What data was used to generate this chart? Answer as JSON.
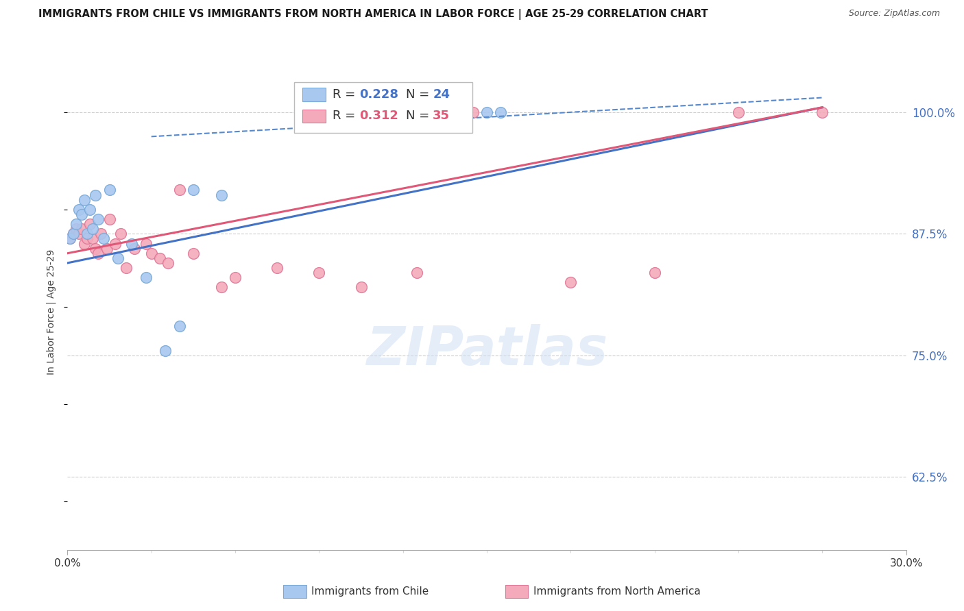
{
  "title": "IMMIGRANTS FROM CHILE VS IMMIGRANTS FROM NORTH AMERICA IN LABOR FORCE | AGE 25-29 CORRELATION CHART",
  "source": "Source: ZipAtlas.com",
  "ylabel": "In Labor Force | Age 25-29",
  "ylabel_right_ticks": [
    62.5,
    75.0,
    87.5,
    100.0
  ],
  "xlim": [
    0.0,
    30.0
  ],
  "ylim": [
    55.0,
    104.0
  ],
  "chile_color": "#A8C8F0",
  "chile_edge": "#7AAAD8",
  "na_color": "#F4AABB",
  "na_edge": "#E07898",
  "line_chile_color": "#4472C4",
  "line_na_color": "#E05878",
  "line_dash_color": "#5588CC",
  "legend_R_chile": "0.228",
  "legend_N_chile": "24",
  "legend_R_na": "0.312",
  "legend_N_na": "35",
  "watermark": "ZIPatlas",
  "background_color": "#FFFFFF",
  "grid_color": "#CCCCCC",
  "chile_x": [
    0.1,
    0.2,
    0.3,
    0.4,
    0.5,
    0.6,
    0.7,
    0.8,
    0.9,
    1.0,
    1.1,
    1.3,
    1.5,
    1.8,
    2.3,
    2.8,
    3.5,
    4.0,
    4.5,
    5.5,
    13.5,
    14.0,
    15.0,
    15.5
  ],
  "chile_y": [
    87.0,
    87.5,
    88.5,
    90.0,
    89.5,
    91.0,
    87.5,
    90.0,
    88.0,
    91.5,
    89.0,
    87.0,
    92.0,
    85.0,
    86.5,
    83.0,
    75.5,
    78.0,
    92.0,
    91.5,
    100.0,
    100.0,
    100.0,
    100.0
  ],
  "na_x": [
    0.1,
    0.2,
    0.3,
    0.4,
    0.5,
    0.6,
    0.7,
    0.8,
    0.9,
    1.0,
    1.1,
    1.2,
    1.4,
    1.5,
    1.7,
    1.9,
    2.1,
    2.4,
    2.8,
    3.0,
    3.3,
    3.6,
    4.0,
    4.5,
    5.5,
    6.0,
    7.5,
    9.0,
    10.5,
    12.5,
    14.5,
    18.0,
    21.0,
    24.0,
    27.0
  ],
  "na_y": [
    87.0,
    87.5,
    88.0,
    87.5,
    88.0,
    86.5,
    87.0,
    88.5,
    87.0,
    86.0,
    85.5,
    87.5,
    86.0,
    89.0,
    86.5,
    87.5,
    84.0,
    86.0,
    86.5,
    85.5,
    85.0,
    84.5,
    92.0,
    85.5,
    82.0,
    83.0,
    84.0,
    83.5,
    82.0,
    83.5,
    100.0,
    82.5,
    83.5,
    100.0,
    100.0
  ],
  "reg_chile_x0": 0.0,
  "reg_chile_y0": 84.5,
  "reg_chile_x1": 27.0,
  "reg_chile_y1": 100.5,
  "reg_na_x0": 0.0,
  "reg_na_y0": 85.5,
  "reg_na_x1": 27.0,
  "reg_na_y1": 100.5,
  "dash_x0": 3.0,
  "dash_y0": 97.5,
  "dash_x1": 27.0,
  "dash_y1": 101.5
}
